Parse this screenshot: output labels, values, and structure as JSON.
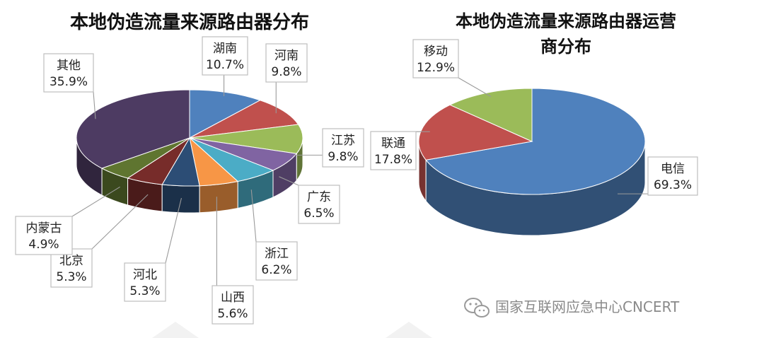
{
  "chart_data": [
    {
      "type": "pie",
      "title": "本地伪造流量来源路由器分布",
      "slices": [
        {
          "label": "湖南",
          "value": 10.7,
          "display": "10.7%",
          "color": "#4f81bd"
        },
        {
          "label": "河南",
          "value": 9.8,
          "display": "9.8%",
          "color": "#c0504d"
        },
        {
          "label": "江苏",
          "value": 9.8,
          "display": "9.8%",
          "color": "#9bbb59"
        },
        {
          "label": "广东",
          "value": 6.5,
          "display": "6.5%",
          "color": "#8064a2"
        },
        {
          "label": "浙江",
          "value": 6.2,
          "display": "6.2%",
          "color": "#4bacc6"
        },
        {
          "label": "山西",
          "value": 5.6,
          "display": "5.6%",
          "color": "#f79646"
        },
        {
          "label": "河北",
          "value": 5.3,
          "display": "5.3%",
          "color": "#2c4d75"
        },
        {
          "label": "北京",
          "value": 5.3,
          "display": "5.3%",
          "color": "#772c2a"
        },
        {
          "label": "内蒙古",
          "value": 4.9,
          "display": "4.9%",
          "color": "#5f7530"
        },
        {
          "label": "其他",
          "value": 35.9,
          "display": "35.9%",
          "color": "#4d3b62"
        }
      ]
    },
    {
      "type": "pie",
      "title": "本地伪造流量来源路由器运营商分布",
      "title_lines": [
        "本地伪造流量来源路由器运营",
        "商分布"
      ],
      "slices": [
        {
          "label": "电信",
          "value": 69.3,
          "display": "69.3%",
          "color": "#4f81bd"
        },
        {
          "label": "联通",
          "value": 17.8,
          "display": "17.8%",
          "color": "#c0504d"
        },
        {
          "label": "移动",
          "value": 12.9,
          "display": "12.9%",
          "color": "#9bbb59"
        }
      ]
    }
  ],
  "watermark": {
    "text": "国家互联网应急中心CNCERT",
    "icon": "wechat-icon"
  }
}
